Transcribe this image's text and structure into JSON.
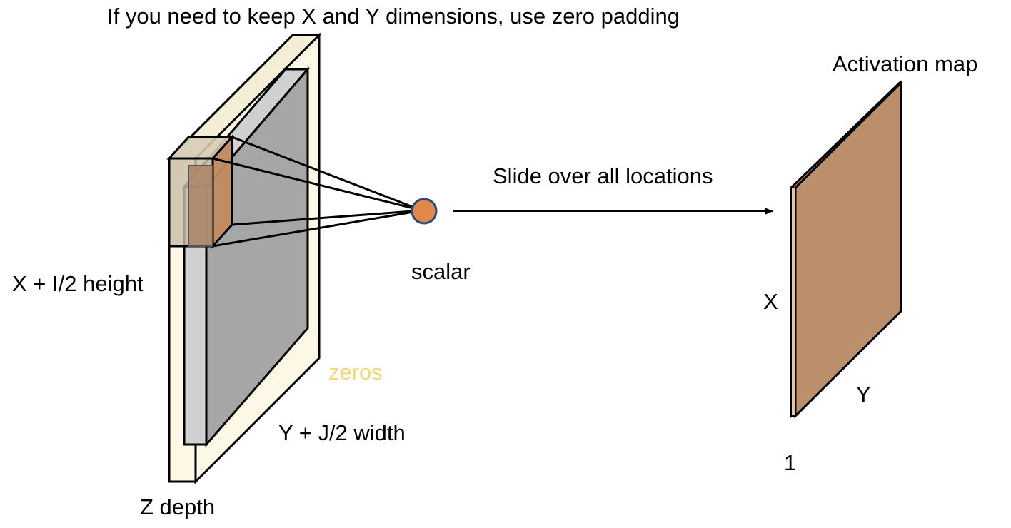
{
  "title": "If you need to keep X and Y dimensions, use zero padding",
  "input_volume": {
    "height_label": "X + I/2 height",
    "width_label": "Y + J/2 width",
    "depth_label": "Z depth",
    "padding_label": "zeros"
  },
  "neuron": {
    "label": "scalar"
  },
  "operation": {
    "label": "Slide over all locations"
  },
  "output": {
    "title": "Activation map",
    "height_label": "X",
    "width_label": "Y",
    "depth_label": "1"
  },
  "colors": {
    "padding_fill": "#fdf8e6",
    "padding_side": "#f5eed6",
    "input_face": "#a6a6a6",
    "input_side": "#d0d0d0",
    "filter_fill": "#c08a60",
    "neuron_fill": "#e0874a",
    "activation_fill": "#bc8f6c",
    "zeros_text": "#f2d680"
  }
}
